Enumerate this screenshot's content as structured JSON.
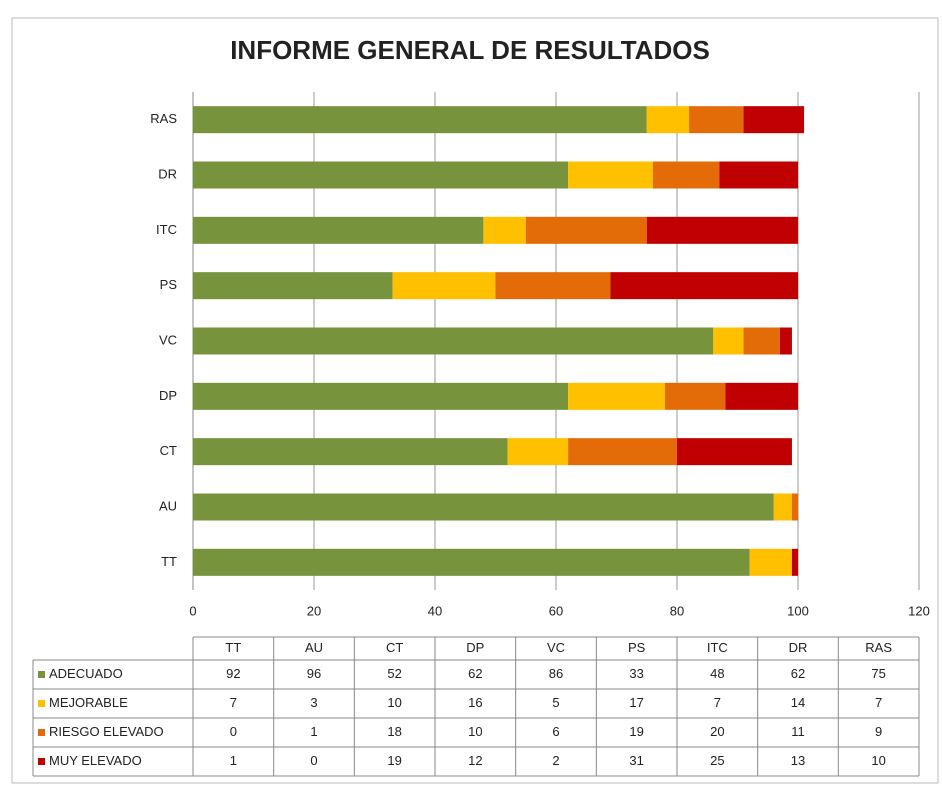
{
  "chart_data": {
    "type": "bar",
    "orientation": "horizontal",
    "stacked": true,
    "title": "INFORME GENERAL DE RESULTADOS",
    "categories": [
      "TT",
      "AU",
      "CT",
      "DP",
      "VC",
      "PS",
      "ITC",
      "DR",
      "RAS"
    ],
    "series": [
      {
        "name": "ADECUADO",
        "color": "#77933c",
        "values": [
          92,
          96,
          52,
          62,
          86,
          33,
          48,
          62,
          75
        ]
      },
      {
        "name": "MEJORABLE",
        "color": "#ffc000",
        "values": [
          7,
          3,
          10,
          16,
          5,
          17,
          7,
          14,
          7
        ]
      },
      {
        "name": "RIESGO ELEVADO",
        "color": "#e36c09",
        "values": [
          0,
          1,
          18,
          10,
          6,
          19,
          20,
          11,
          9
        ]
      },
      {
        "name": "MUY ELEVADO",
        "color": "#c00000",
        "values": [
          1,
          0,
          19,
          12,
          2,
          31,
          25,
          13,
          10
        ]
      }
    ],
    "xlim": [
      0,
      120
    ],
    "xticks": [
      0,
      20,
      40,
      60,
      80,
      100,
      120
    ],
    "grid": true
  }
}
